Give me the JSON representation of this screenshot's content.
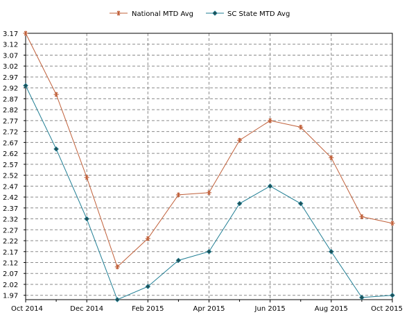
{
  "chart_data": {
    "type": "line",
    "x": [
      "Oct 2014",
      "Nov 2014",
      "Dec 2014",
      "Jan 2015",
      "Feb 2015",
      "Mar 2015",
      "Apr 2015",
      "May 2015",
      "Jun 2015",
      "Jul 2015",
      "Aug 2015",
      "Sep 2015",
      "Oct 2015"
    ],
    "x_tick_labels": [
      "Oct 2014",
      "Dec 2014",
      "Feb 2015",
      "Apr 2015",
      "Jun 2015",
      "Aug 2015",
      "Oct 2015"
    ],
    "y_tick_labels": [
      "3.17",
      "3.12",
      "3.07",
      "3.02",
      "2.97",
      "2.92",
      "2.87",
      "2.82",
      "2.77",
      "2.72",
      "2.67",
      "2.62",
      "2.57",
      "2.52",
      "2.47",
      "2.42",
      "2.37",
      "2.32",
      "2.27",
      "2.22",
      "2.17",
      "2.12",
      "2.07",
      "2.02",
      "1.97"
    ],
    "ylim": [
      1.95,
      3.17
    ],
    "grid": true,
    "legend_position": "top-center",
    "series": [
      {
        "name": "National MTD Avg",
        "color": "#c0603a",
        "marker": "asterisk",
        "values": [
          3.17,
          2.89,
          2.51,
          2.1,
          2.23,
          2.43,
          2.44,
          2.68,
          2.77,
          2.74,
          2.6,
          2.33,
          2.3
        ]
      },
      {
        "name": "SC State MTD Avg",
        "color": "#1e7d93",
        "marker": "diamond",
        "values": [
          2.93,
          2.64,
          2.32,
          1.95,
          2.01,
          2.13,
          2.17,
          2.39,
          2.47,
          2.39,
          2.17,
          1.96,
          1.97
        ]
      }
    ]
  }
}
